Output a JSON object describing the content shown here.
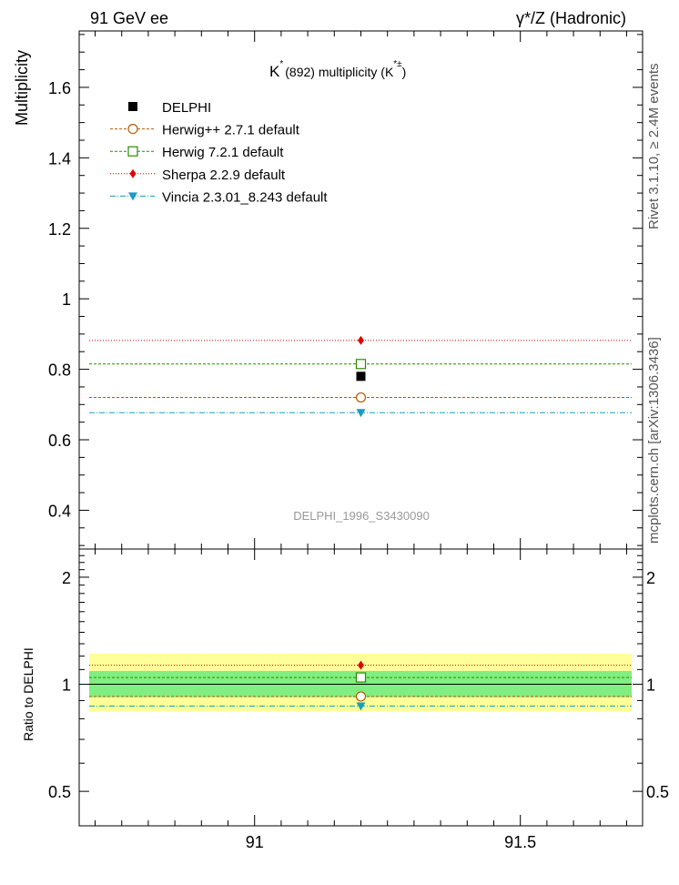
{
  "header": {
    "left": "91 GeV ee",
    "right": "γ*/Z (Hadronic)"
  },
  "side_labels": {
    "rivet": "Rivet 3.1.10, ≥ 2.4M events",
    "mcplots": "mcplots.cern.ch [arXiv:1306.3436]"
  },
  "chart_data": [
    {
      "type": "scatter",
      "title": {
        "base": "K",
        "sup1": "*",
        "mid": "(892) multiplicity (K",
        "sup2": "*±",
        "end": ")"
      },
      "ylabel": "Multiplicity",
      "watermark": "DELPHI_1996_S3430090",
      "xlim": [
        90.67,
        91.73
      ],
      "ylim": [
        0.29,
        1.76
      ],
      "yticks": [
        0.4,
        0.6,
        0.8,
        1.0,
        1.2,
        1.4,
        1.6
      ],
      "ytick_labels": [
        "0.4",
        "0.6",
        "0.8",
        "1",
        "1.2",
        "1.4",
        "1.6"
      ],
      "legend_position": "top-left",
      "series": [
        {
          "name": "DELPHI",
          "x": 91.2,
          "y": 0.78,
          "color": "#000000",
          "marker": "filled-square",
          "line": "none"
        },
        {
          "name": "Herwig++ 2.7.1 default",
          "x": 91.2,
          "y": 0.72,
          "color": "#b35900",
          "marker": "open-circle",
          "line": "dashed"
        },
        {
          "name": "Herwig 7.2.1 default",
          "x": 91.2,
          "y": 0.815,
          "color": "#2a8a00",
          "marker": "open-square",
          "line": "dashed"
        },
        {
          "name": "Sherpa 2.2.9 default",
          "x": 91.2,
          "y": 0.882,
          "color": "#e00000",
          "marker": "filled-diamond",
          "line": "dotted"
        },
        {
          "name": "Vincia 2.3.01_8.243 default",
          "x": 91.2,
          "y": 0.677,
          "color": "#1a9cbf",
          "marker": "filled-triangle-down",
          "line": "dashdot"
        }
      ]
    },
    {
      "type": "scatter",
      "ylabel": "Ratio to DELPHI",
      "xlim": [
        90.67,
        91.73
      ],
      "ylim": [
        0.4,
        2.4
      ],
      "log_y": true,
      "yticks": [
        0.5,
        1,
        2
      ],
      "ytick_labels": [
        "0.5",
        "1",
        "2"
      ],
      "xticks": [
        91,
        91.5
      ],
      "xtick_labels": [
        "91",
        "91.5"
      ],
      "bands": [
        {
          "label": "outer",
          "low": 0.84,
          "high": 1.22,
          "color": "#ffff99"
        },
        {
          "label": "inner",
          "low": 0.92,
          "high": 1.09,
          "color": "#80ee80"
        }
      ],
      "series": [
        {
          "name": "Herwig++ 2.7.1 default",
          "x": 91.2,
          "y": 0.924,
          "color": "#b35900",
          "marker": "open-circle",
          "line": "dashed"
        },
        {
          "name": "Herwig 7.2.1 default",
          "x": 91.2,
          "y": 1.045,
          "color": "#2a8a00",
          "marker": "open-square",
          "line": "dashed"
        },
        {
          "name": "Sherpa 2.2.9 default",
          "x": 91.2,
          "y": 1.131,
          "color": "#e00000",
          "marker": "filled-diamond",
          "line": "dotted"
        },
        {
          "name": "Vincia 2.3.01_8.243 default",
          "x": 91.2,
          "y": 0.868,
          "color": "#1a9cbf",
          "marker": "filled-triangle-down",
          "line": "dashdot"
        }
      ]
    }
  ]
}
